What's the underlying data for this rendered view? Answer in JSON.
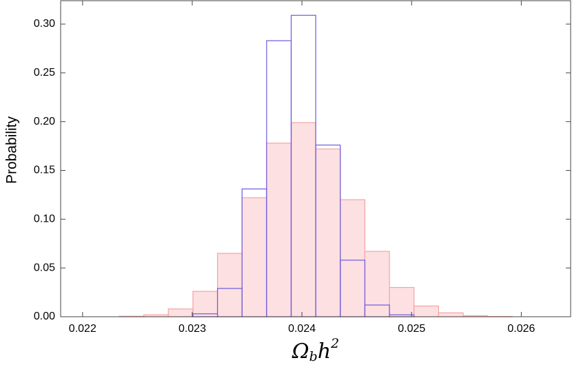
{
  "chart_data": {
    "type": "histogram",
    "ylabel": "Probability",
    "xlabel_parts": [
      "Ω",
      "b",
      "h",
      "2"
    ],
    "bins": [
      0.022334,
      0.022558,
      0.022782,
      0.023006,
      0.02323,
      0.023454,
      0.023678,
      0.023902,
      0.024126,
      0.02435,
      0.024574,
      0.024798,
      0.025022,
      0.025246,
      0.02547,
      0.025694,
      0.025918
    ],
    "series": [
      {
        "color": "#f4a3a3",
        "fill": "#fde0e2",
        "counts": [
          0.0005,
          0.002,
          0.008,
          0.026,
          0.065,
          0.122,
          0.178,
          0.199,
          0.172,
          0.12,
          0.067,
          0.03,
          0.011,
          0.004,
          0.001,
          0.0003
        ]
      },
      {
        "color": "#6a5ae0",
        "fill": "none",
        "counts": [
          0,
          0,
          0,
          0.003,
          0.029,
          0.131,
          0.283,
          0.309,
          0.176,
          0.058,
          0.012,
          0.002,
          0,
          0,
          0,
          0
        ]
      }
    ],
    "xlim": [
      0.0218,
      0.02645
    ],
    "ylim": [
      0,
      0.324
    ],
    "xticks": [
      0.022,
      0.023,
      0.024,
      0.025,
      0.026
    ],
    "yticks": [
      {
        "value": 0,
        "label": "0.00"
      },
      {
        "value": 0.05,
        "label": "0.05"
      },
      {
        "value": 0.1,
        "label": "0.10"
      },
      {
        "value": 0.15,
        "label": "0.15"
      },
      {
        "value": 0.2,
        "label": "0.20"
      },
      {
        "value": 0.25,
        "label": "0.25"
      },
      {
        "value": 0.3,
        "label": "0.30"
      }
    ]
  }
}
